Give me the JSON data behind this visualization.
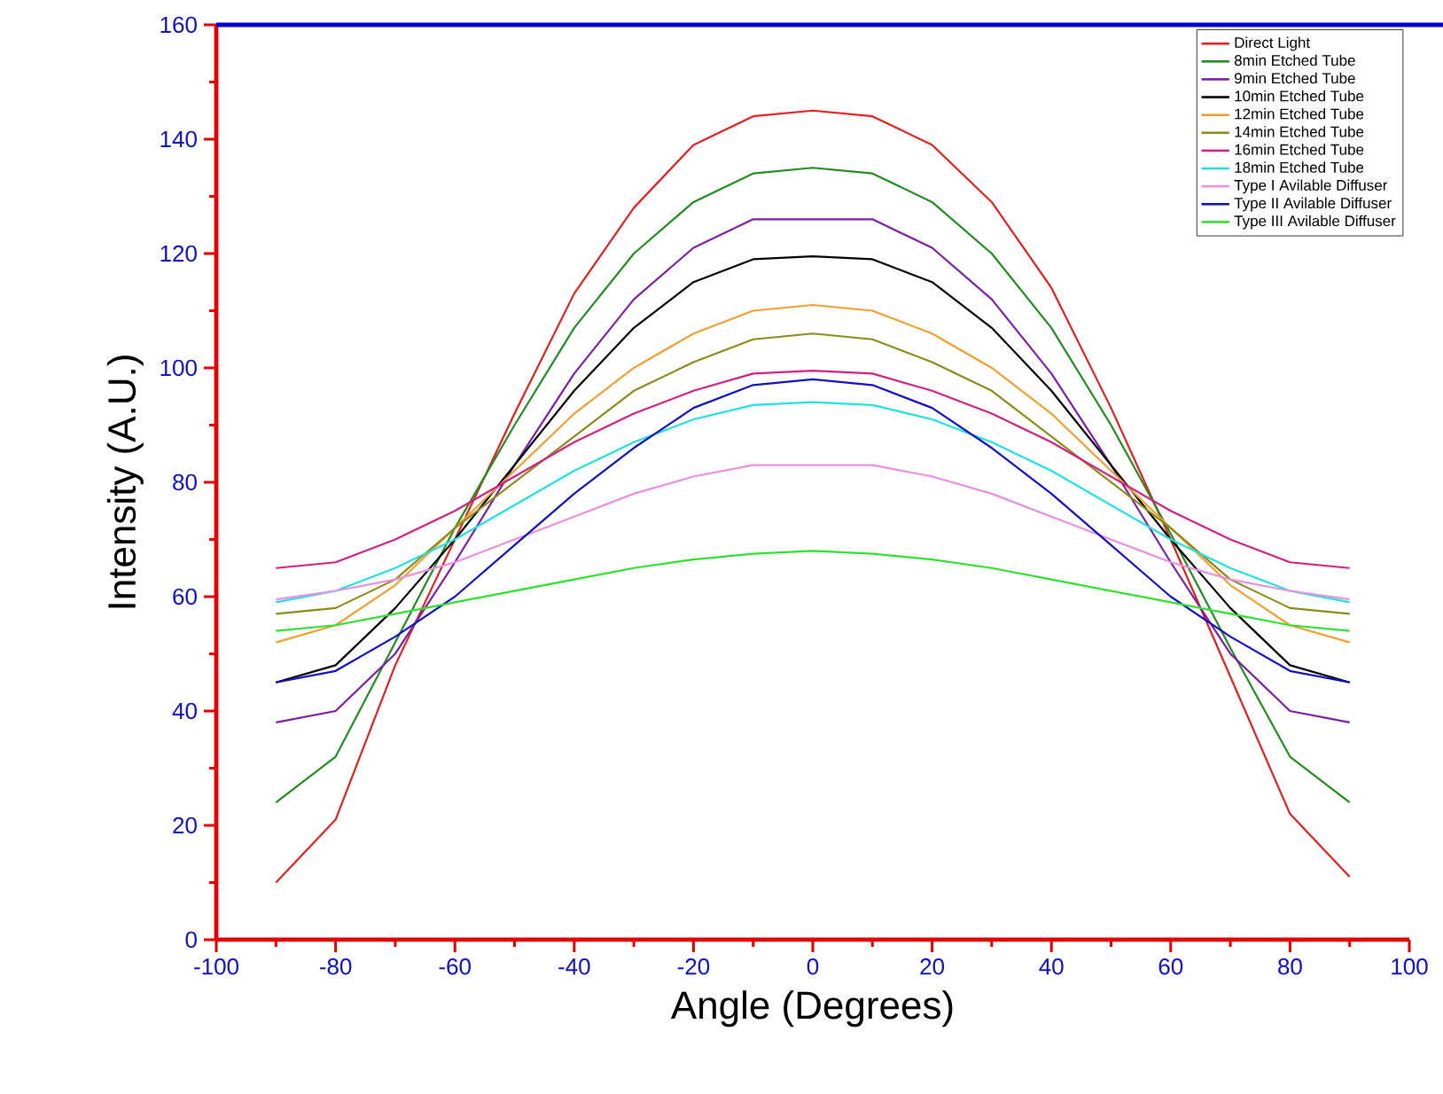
{
  "chart_data": {
    "type": "line",
    "xlabel": "Angle (Degrees)",
    "ylabel": "Intensity (A.U.)",
    "x": [
      -90,
      -80,
      -70,
      -60,
      -50,
      -40,
      -30,
      -20,
      -10,
      0,
      10,
      20,
      30,
      40,
      50,
      60,
      70,
      80,
      90
    ],
    "series": [
      {
        "name": "Direct Light",
        "color": "#e02020",
        "values": [
          10,
          21,
          48,
          70,
          92,
          113,
          128,
          139,
          144,
          145,
          144,
          139,
          129,
          114,
          93,
          70,
          46,
          22,
          11
        ]
      },
      {
        "name": "8min Etched Tube",
        "color": "#228b22",
        "values": [
          24,
          32,
          52,
          72,
          90,
          107,
          120,
          129,
          134,
          135,
          134,
          129,
          120,
          107,
          90,
          71,
          51,
          32,
          24
        ]
      },
      {
        "name": "9min Etched Tube",
        "color": "#7b1fa2",
        "values": [
          38,
          40,
          50,
          66,
          83,
          99,
          112,
          121,
          126,
          126,
          126,
          121,
          112,
          99,
          83,
          66,
          50,
          40,
          38
        ]
      },
      {
        "name": "10min Etched Tube",
        "color": "#000000",
        "values": [
          45,
          48,
          58,
          70,
          83,
          96,
          107,
          115,
          119,
          119.5,
          119,
          115,
          107,
          96,
          83,
          70,
          58,
          48,
          45
        ]
      },
      {
        "name": "12min Etched Tube",
        "color": "#f0a030",
        "values": [
          52,
          55,
          62,
          72,
          82,
          92,
          100,
          106,
          110,
          111,
          110,
          106,
          100,
          92,
          82,
          72,
          62,
          55,
          52
        ]
      },
      {
        "name": "14min Etched Tube",
        "color": "#8b8b1a",
        "values": [
          57,
          58,
          63,
          72,
          80,
          88,
          96,
          101,
          105,
          106,
          105,
          101,
          96,
          88,
          80,
          72,
          63,
          58,
          57
        ]
      },
      {
        "name": "16min Etched Tube",
        "color": "#d02080",
        "values": [
          65,
          66,
          70,
          75,
          81,
          87,
          92,
          96,
          99,
          99.5,
          99,
          96,
          92,
          87,
          81,
          75,
          70,
          66,
          65
        ]
      },
      {
        "name": "18min Etched Tube",
        "color": "#20e0e0",
        "values": [
          59,
          61,
          65,
          70,
          76,
          82,
          87,
          91,
          93.5,
          94,
          93.5,
          91,
          87,
          82,
          76,
          70,
          65,
          61,
          59
        ]
      },
      {
        "name": "Type I Avilable Diffuser",
        "color": "#e890e0",
        "values": [
          59.5,
          61,
          63,
          66,
          70,
          74,
          78,
          81,
          83,
          83,
          83,
          81,
          78,
          74,
          70,
          66,
          63,
          61,
          59.5
        ]
      },
      {
        "name": "Type II Avilable Diffuser",
        "color": "#1010c0",
        "values": [
          45,
          47,
          53,
          60,
          69,
          78,
          86,
          93,
          97,
          98,
          97,
          93,
          86,
          78,
          69,
          60,
          53,
          47,
          45
        ]
      },
      {
        "name": "Type III Avilable Diffuser",
        "color": "#30e030",
        "values": [
          54,
          55,
          57,
          59,
          61,
          63,
          65,
          66.5,
          67.5,
          68,
          67.5,
          66.5,
          65,
          63,
          61,
          59,
          57,
          55,
          54
        ]
      }
    ],
    "xlim": [
      -100,
      100
    ],
    "ylim": [
      0,
      160
    ],
    "xticks": [
      -100,
      -80,
      -60,
      -40,
      -20,
      0,
      20,
      40,
      60,
      80,
      100
    ],
    "yticks": [
      0,
      20,
      40,
      60,
      80,
      100,
      120,
      140,
      160
    ],
    "legend": "top right",
    "grid": false,
    "marker": "none",
    "line_style": "solid"
  }
}
